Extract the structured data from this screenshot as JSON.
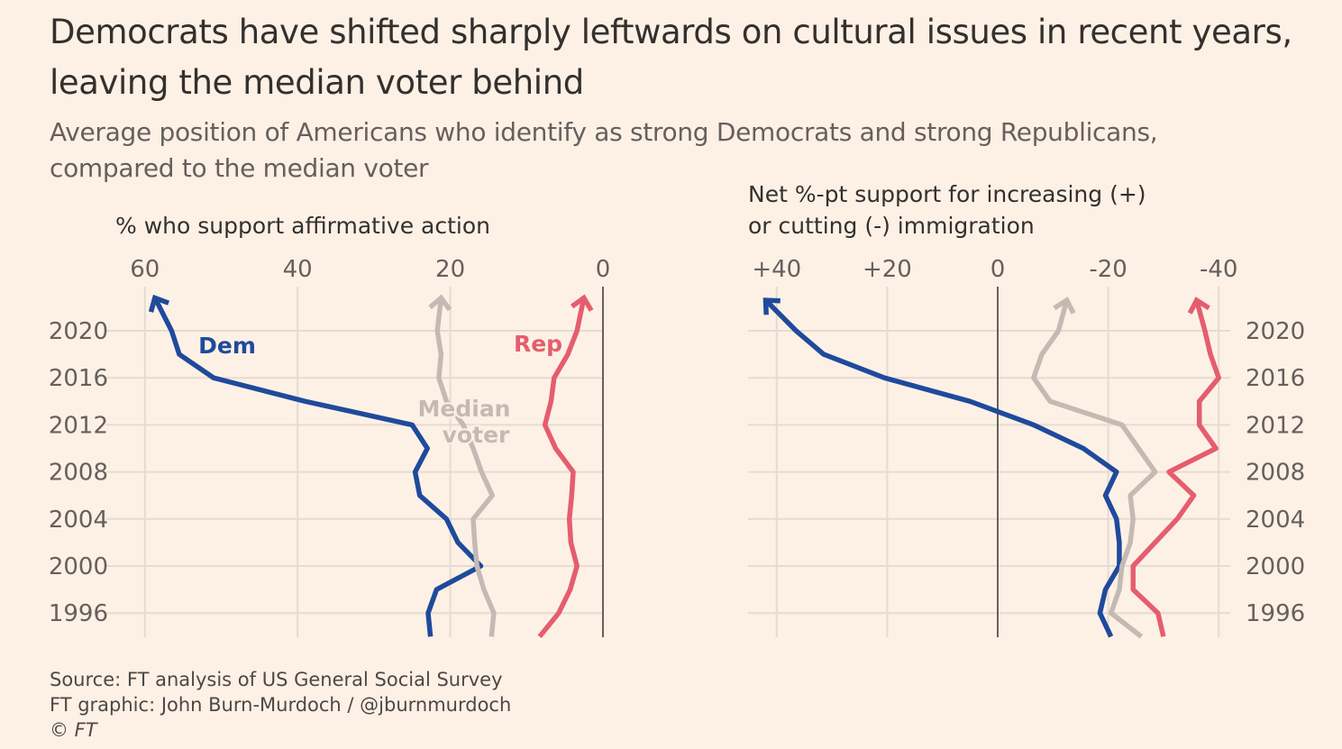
{
  "title": {
    "line1": "Democrats have shifted sharply leftwards on cultural issues in recent years,",
    "line2": "leaving the median voter behind"
  },
  "subtitle": {
    "line1": "Average position of Americans who identify as strong Democrats and strong Republicans,",
    "line2": "compared to the median voter"
  },
  "source": {
    "line1": "Source: FT analysis of US General Social Survey",
    "line2": "FT graphic: John Burn-Murdoch / @jburnmurdoch",
    "line3": "© FT"
  },
  "colors": {
    "background": "#fdf1e6",
    "dem": "#1f4a9c",
    "rep": "#e55d6e",
    "median": "#c4bab3",
    "grid": "#e6dbd1",
    "zero_line": "#66605c",
    "label_text": "#66605c"
  },
  "chart_data": [
    {
      "type": "line",
      "title": "% who support affirmative action",
      "xlabel": "% who support affirmative action",
      "ylabel": "",
      "x_reversed": true,
      "xlim": [
        60,
        0
      ],
      "xticks": [
        60,
        40,
        20,
        0
      ],
      "xtick_labels": [
        "60",
        "40",
        "20",
        "0"
      ],
      "ylim": [
        1994,
        2023
      ],
      "yticks": [
        1996,
        2000,
        2004,
        2008,
        2012,
        2016,
        2020
      ],
      "ytick_labels": [
        "1996",
        "2000",
        "2004",
        "2008",
        "2012",
        "2016",
        "2020"
      ],
      "ytick_side": "left",
      "grid": true,
      "series": [
        {
          "name": "Dem",
          "label": "Dem",
          "color": "#1f4a9c",
          "points": [
            [
              22.6,
              1994
            ],
            [
              22.9,
              1996
            ],
            [
              21.8,
              1998
            ],
            [
              16,
              2000
            ],
            [
              19,
              2002
            ],
            [
              20.5,
              2004
            ],
            [
              24,
              2006
            ],
            [
              24.6,
              2008
            ],
            [
              23,
              2010
            ],
            [
              25,
              2012
            ],
            [
              39,
              2014
            ],
            [
              51,
              2016
            ],
            [
              55.5,
              2018
            ],
            [
              56.5,
              2020
            ],
            [
              58.7,
              2022.8
            ]
          ]
        },
        {
          "name": "Median voter",
          "label": "Median voter",
          "color": "#c4bab3",
          "points": [
            [
              14.6,
              1994
            ],
            [
              14.3,
              1996
            ],
            [
              15.6,
              1998
            ],
            [
              16.5,
              2000
            ],
            [
              16.8,
              2002
            ],
            [
              17,
              2004
            ],
            [
              14.5,
              2006
            ],
            [
              15.9,
              2008
            ],
            [
              17,
              2010
            ],
            [
              18.3,
              2012
            ],
            [
              20.5,
              2014
            ],
            [
              21.5,
              2016
            ],
            [
              21.2,
              2018
            ],
            [
              21.7,
              2020
            ],
            [
              21.2,
              2022.8
            ]
          ]
        },
        {
          "name": "Rep",
          "label": "Rep",
          "color": "#e55d6e",
          "points": [
            [
              8.3,
              1994
            ],
            [
              5.8,
              1996
            ],
            [
              4.3,
              1998
            ],
            [
              3.4,
              2000
            ],
            [
              4.2,
              2002
            ],
            [
              4.4,
              2004
            ],
            [
              4.1,
              2006
            ],
            [
              3.9,
              2008
            ],
            [
              6.2,
              2010
            ],
            [
              7.6,
              2012
            ],
            [
              6.8,
              2014
            ],
            [
              6.4,
              2016
            ],
            [
              4.6,
              2018
            ],
            [
              3.4,
              2020
            ],
            [
              2.5,
              2022.8
            ]
          ]
        }
      ],
      "annotations": [
        {
          "text": "Dem",
          "series": "Dem"
        },
        {
          "text": "Rep",
          "series": "Rep"
        },
        {
          "text": "Median",
          "series": "Median voter"
        },
        {
          "text": "voter",
          "series": "Median voter"
        }
      ]
    },
    {
      "type": "line",
      "title_line1": "Net %-pt support for increasing (+)",
      "title_line2": "or cutting (-) immigration",
      "xlabel": "Net %-pt support for increasing (+) or cutting (-) immigration",
      "ylabel": "",
      "x_reversed": true,
      "xlim": [
        40,
        -40
      ],
      "xticks": [
        40,
        20,
        0,
        -20,
        -40
      ],
      "xtick_labels": [
        "+40",
        "+20",
        "0",
        "-20",
        "-40"
      ],
      "ylim": [
        1994,
        2023
      ],
      "yticks": [
        1996,
        2000,
        2004,
        2008,
        2012,
        2016,
        2020
      ],
      "ytick_labels": [
        "1996",
        "2000",
        "2004",
        "2008",
        "2012",
        "2016",
        "2020"
      ],
      "ytick_side": "right",
      "grid": true,
      "series": [
        {
          "name": "Dem",
          "color": "#1f4a9c",
          "points": [
            [
              -20.5,
              1994
            ],
            [
              -18.5,
              1996
            ],
            [
              -19.5,
              1998
            ],
            [
              -22,
              2000
            ],
            [
              -22,
              2002
            ],
            [
              -21.5,
              2004
            ],
            [
              -19.5,
              2006
            ],
            [
              -21.5,
              2008
            ],
            [
              -15.5,
              2010
            ],
            [
              -6.5,
              2012
            ],
            [
              5,
              2014
            ],
            [
              20.5,
              2016
            ],
            [
              31.5,
              2018
            ],
            [
              36.5,
              2020
            ],
            [
              42,
              2022.6
            ]
          ]
        },
        {
          "name": "Median voter",
          "color": "#c4bab3",
          "points": [
            [
              -26,
              1994
            ],
            [
              -20.5,
              1996
            ],
            [
              -22,
              1998
            ],
            [
              -22.5,
              2000
            ],
            [
              -24,
              2002
            ],
            [
              -24.5,
              2004
            ],
            [
              -24,
              2006
            ],
            [
              -28.5,
              2008
            ],
            [
              -25.5,
              2010
            ],
            [
              -22.5,
              2012
            ],
            [
              -9.5,
              2014
            ],
            [
              -6.5,
              2016
            ],
            [
              -8,
              2018
            ],
            [
              -11,
              2020
            ],
            [
              -12.5,
              2022.6
            ]
          ]
        },
        {
          "name": "Rep",
          "color": "#e55d6e",
          "points": [
            [
              -30,
              1994
            ],
            [
              -29,
              1996
            ],
            [
              -24.5,
              1998
            ],
            [
              -24.5,
              2000
            ],
            [
              -28.5,
              2002
            ],
            [
              -32.5,
              2004
            ],
            [
              -35.5,
              2006
            ],
            [
              -31,
              2008
            ],
            [
              -39.5,
              2010
            ],
            [
              -36.5,
              2012
            ],
            [
              -36.5,
              2014
            ],
            [
              -40,
              2016
            ],
            [
              -38.5,
              2018
            ],
            [
              -37.5,
              2020
            ],
            [
              -36,
              2022.6
            ]
          ]
        }
      ]
    }
  ]
}
